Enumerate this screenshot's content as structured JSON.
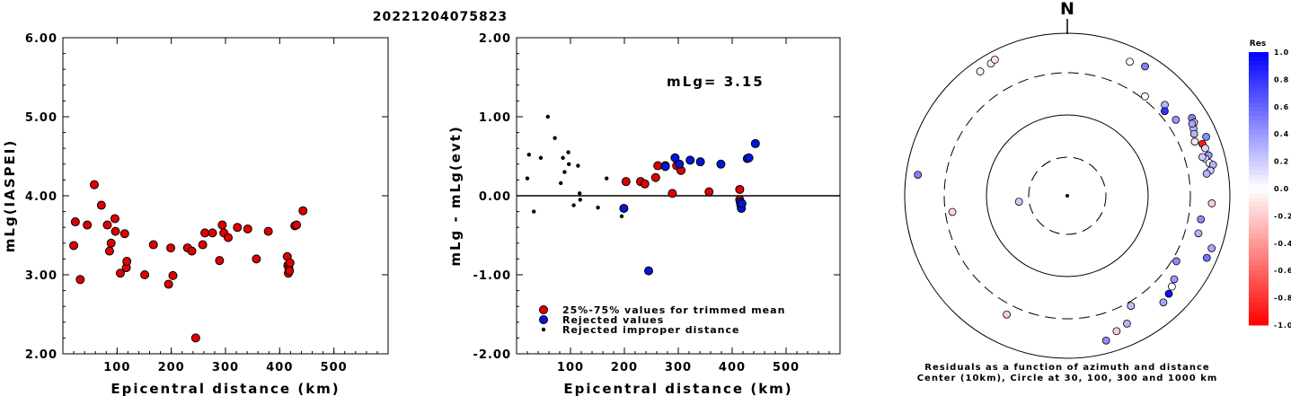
{
  "figure_title": "20221204075823",
  "colors": {
    "accepted": "#e00000",
    "rejected": "#0018d8",
    "improper": "#000000"
  },
  "chart_data": [
    {
      "type": "scatter",
      "ylabel": "mLg(IASPEI)",
      "xlabel": "Epicentral distance (km)",
      "xlim": [
        0,
        600
      ],
      "ylim": [
        2.0,
        6.0
      ],
      "xticks": [
        "100",
        "200",
        "300",
        "400",
        "500"
      ],
      "yticks": [
        "2.00",
        "3.00",
        "4.00",
        "5.00",
        "6.00"
      ],
      "grid": false,
      "points": [
        [
          20,
          3.37
        ],
        [
          23,
          3.67
        ],
        [
          32,
          2.94
        ],
        [
          45,
          3.63
        ],
        [
          58,
          4.14
        ],
        [
          71,
          3.88
        ],
        [
          82,
          3.63
        ],
        [
          86,
          3.3
        ],
        [
          89,
          3.4
        ],
        [
          96,
          3.71
        ],
        [
          97,
          3.55
        ],
        [
          106,
          3.02
        ],
        [
          114,
          3.52
        ],
        [
          117,
          3.09
        ],
        [
          118,
          3.17
        ],
        [
          151,
          3.0
        ],
        [
          167,
          3.38
        ],
        [
          195,
          2.88
        ],
        [
          199,
          3.34
        ],
        [
          203,
          2.99
        ],
        [
          230,
          3.34
        ],
        [
          238,
          3.3
        ],
        [
          245,
          2.2
        ],
        [
          258,
          3.38
        ],
        [
          262,
          3.53
        ],
        [
          276,
          3.53
        ],
        [
          289,
          3.18
        ],
        [
          294,
          3.63
        ],
        [
          297,
          3.53
        ],
        [
          305,
          3.47
        ],
        [
          322,
          3.6
        ],
        [
          341,
          3.58
        ],
        [
          357,
          3.2
        ],
        [
          379,
          3.55
        ],
        [
          414,
          3.23
        ],
        [
          415,
          3.12
        ],
        [
          416,
          3.02
        ],
        [
          417,
          3.08
        ],
        [
          418,
          3.05
        ],
        [
          419,
          3.15
        ],
        [
          428,
          3.62
        ],
        [
          431,
          3.63
        ],
        [
          443,
          3.81
        ]
      ]
    },
    {
      "type": "scatter",
      "ylabel": "mLg - mLg(evt)",
      "xlabel": "Epicentral distance (km)",
      "annotation": "mLg= 3.15",
      "xlim": [
        0,
        600
      ],
      "ylim": [
        -2.0,
        2.0
      ],
      "xticks": [
        "100",
        "200",
        "300",
        "400",
        "500"
      ],
      "yticks": [
        "-2.00",
        "-1.00",
        "0.00",
        "1.00",
        "2.00"
      ],
      "reference_line": 0.0,
      "grid": false,
      "series": [
        {
          "name": "25%-75% values for trimmed mean",
          "points": [
            [
              203,
              0.18
            ],
            [
              230,
              0.18
            ],
            [
              238,
              0.15
            ],
            [
              258,
              0.23
            ],
            [
              262,
              0.38
            ],
            [
              276,
              0.38
            ],
            [
              289,
              0.03
            ],
            [
              297,
              0.38
            ],
            [
              305,
              0.32
            ],
            [
              357,
              0.05
            ],
            [
              414,
              0.08
            ],
            [
              414,
              -0.05
            ]
          ]
        },
        {
          "name": "Rejected values",
          "points": [
            [
              199,
              -0.16
            ],
            [
              245,
              -0.95
            ],
            [
              276,
              0.37
            ],
            [
              294,
              0.48
            ],
            [
              302,
              0.4
            ],
            [
              322,
              0.45
            ],
            [
              341,
              0.43
            ],
            [
              379,
              0.4
            ],
            [
              415,
              -0.08
            ],
            [
              416,
              -0.12
            ],
            [
              417,
              -0.16
            ],
            [
              418,
              -0.1
            ],
            [
              428,
              0.47
            ],
            [
              431,
              0.48
            ],
            [
              443,
              0.66
            ]
          ]
        },
        {
          "name": "Rejected improper distance",
          "points": [
            [
              20,
              0.22
            ],
            [
              23,
              0.52
            ],
            [
              32,
              -0.2
            ],
            [
              45,
              0.48
            ],
            [
              58,
              1.0
            ],
            [
              71,
              0.73
            ],
            [
              82,
              0.16
            ],
            [
              86,
              0.48
            ],
            [
              89,
              0.3
            ],
            [
              96,
              0.55
            ],
            [
              97,
              0.4
            ],
            [
              106,
              -0.12
            ],
            [
              114,
              0.38
            ],
            [
              117,
              0.03
            ],
            [
              118,
              -0.05
            ],
            [
              151,
              -0.15
            ],
            [
              167,
              0.22
            ],
            [
              195,
              -0.26
            ]
          ]
        }
      ]
    },
    {
      "type": "scatter",
      "subtype": "polar",
      "north_label": "N",
      "caption_line1": "Residuals as a function of azimuth and distance",
      "caption_line2": "Center (10km), Circle at 30, 100, 300 and 1000 km",
      "colorbar": {
        "title": "Res",
        "range": [
          -1.0,
          1.0
        ],
        "ticks": [
          "1.0",
          "0.8",
          "0.6",
          "0.4",
          "0.2",
          "0.0",
          "-0.2",
          "-0.4",
          "-0.6",
          "-0.8",
          "-1.0"
        ]
      },
      "points": [
        {
          "az": 330,
          "dist_km": 740,
          "res": -0.05
        },
        {
          "az": 332,
          "dist_km": 775,
          "res": -0.1
        },
        {
          "az": 325,
          "dist_km": 720,
          "res": 0.05
        },
        {
          "az": 25,
          "dist_km": 640,
          "res": 0.0
        },
        {
          "az": 31,
          "dist_km": 700,
          "res": 0.5
        },
        {
          "az": 38,
          "dist_km": 330,
          "res": 0.0
        },
        {
          "az": 47,
          "dist_km": 410,
          "res": 0.3
        },
        {
          "az": 49,
          "dist_km": 360,
          "res": 0.8
        },
        {
          "az": 55,
          "dist_km": 400,
          "res": 0.4
        },
        {
          "az": 58,
          "dist_km": 620,
          "res": 0.5
        },
        {
          "az": 60,
          "dist_km": 610,
          "res": -0.2
        },
        {
          "az": 62,
          "dist_km": 550,
          "res": 0.3
        },
        {
          "az": 60,
          "dist_km": 570,
          "res": 0.35
        },
        {
          "az": 64,
          "dist_km": 520,
          "res": 0.3
        },
        {
          "az": 67,
          "dist_km": 480,
          "res": -0.1
        },
        {
          "az": 67,
          "dist_km": 700,
          "res": 0.45
        },
        {
          "az": 69,
          "dist_km": 580,
          "res": -0.9
        },
        {
          "az": 71,
          "dist_km": 600,
          "res": 0.15
        },
        {
          "az": 74,
          "dist_km": 620,
          "res": 0.4
        },
        {
          "az": 75,
          "dist_km": 550,
          "res": 0.1
        },
        {
          "az": 77,
          "dist_km": 600,
          "res": 0.0
        },
        {
          "az": 78,
          "dist_km": 660,
          "res": 0.3
        },
        {
          "az": 74,
          "dist_km": 510,
          "res": 0.2
        },
        {
          "az": 80,
          "dist_km": 590,
          "res": 0.2
        },
        {
          "az": 81,
          "dist_km": 520,
          "res": 0.3
        },
        {
          "az": 93,
          "dist_km": 580,
          "res": -0.2
        },
        {
          "az": 100,
          "dist_km": 440,
          "res": 0.45
        },
        {
          "az": 106,
          "dist_km": 450,
          "res": 0.3
        },
        {
          "az": 110,
          "dist_km": 760,
          "res": 0.35
        },
        {
          "az": 114,
          "dist_km": 740,
          "res": 0.55
        },
        {
          "az": 121,
          "dist_km": 340,
          "res": 0.45
        },
        {
          "az": 128,
          "dist_km": 440,
          "res": 0.4
        },
        {
          "az": 131,
          "dist_km": 480,
          "res": 0.0
        },
        {
          "az": 134,
          "dist_km": 520,
          "res": 0.95
        },
        {
          "az": 138,
          "dist_km": 560,
          "res": 0.35
        },
        {
          "az": 150,
          "dist_km": 340,
          "res": 0.25
        },
        {
          "az": 155,
          "dist_km": 520,
          "res": 0.3
        },
        {
          "az": 165,
          "dist_km": 680,
          "res": 0.45
        },
        {
          "az": 160,
          "dist_km": 570,
          "res": -0.2
        },
        {
          "az": 207,
          "dist_km": 410,
          "res": -0.2
        },
        {
          "az": 262,
          "dist_km": 250,
          "res": -0.15
        },
        {
          "az": 263,
          "dist_km": 40,
          "res": 0.2
        },
        {
          "az": 278,
          "dist_km": 700,
          "res": 0.5
        }
      ]
    }
  ]
}
